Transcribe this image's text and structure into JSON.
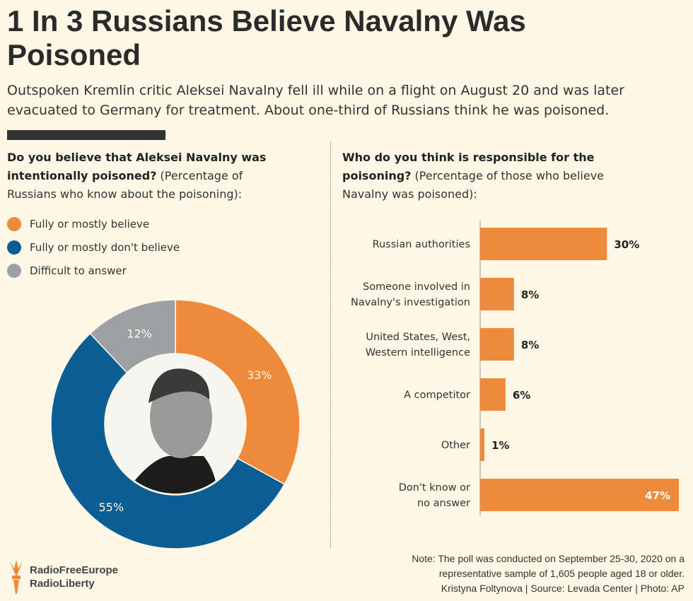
{
  "title": "1 In 3 Russians Believe Navalny Was Poisoned",
  "subtitle": "Outspoken Kremlin critic Aleksei Navalny fell ill while on a flight on August 20 and was later evacuated to Germany for treatment. About one-third of Russians think he was poisoned.",
  "colors": {
    "orange": "#ee8a3b",
    "blue": "#0c5d94",
    "gray": "#9da1a4",
    "background": "#fcf8e5"
  },
  "chart_data": [
    {
      "type": "pie",
      "title_bold": "Do you believe that Aleksei Navalny was intentionally poisoned?",
      "title_rest": " (Percentage of Russians who know about the poisoning):",
      "categories": [
        "Fully or mostly believe",
        "Fully or mostly don't believe",
        "Difficult to answer"
      ],
      "values": [
        33,
        55,
        12
      ],
      "labels": [
        "33%",
        "55%",
        "12%"
      ],
      "colors": [
        "#ee8a3b",
        "#0c5d94",
        "#9da1a4"
      ],
      "legend": "top-left",
      "center_image": "portrait photo"
    },
    {
      "type": "bar",
      "orientation": "horizontal",
      "title_bold": "Who do you think is responsible for the poisoning?",
      "title_rest": " (Percentage of those who believe Navalny was poisoned):",
      "categories": [
        [
          "Russian authorities"
        ],
        [
          "Someone involved in",
          "Navalny's investigation"
        ],
        [
          "United States, West,",
          "Western intelligence"
        ],
        [
          "A competitor"
        ],
        [
          "Other"
        ],
        [
          "Don't know or",
          "no answer"
        ]
      ],
      "values": [
        30,
        8,
        8,
        6,
        1,
        47
      ],
      "labels": [
        "30%",
        "8%",
        "8%",
        "6%",
        "1%",
        "47%"
      ],
      "color": "#ee8a3b",
      "xlim": [
        0,
        47
      ]
    }
  ],
  "note": [
    "Note: The poll was conducted on September 25-30, 2020 on a",
    "representative sample of 1,605 people aged 18 or older.",
    "Kristyna Foltynova | Source: Levada Center | Photo: AP"
  ],
  "logo": {
    "line1": "RadioFreeEurope",
    "line2": "RadioLiberty"
  }
}
